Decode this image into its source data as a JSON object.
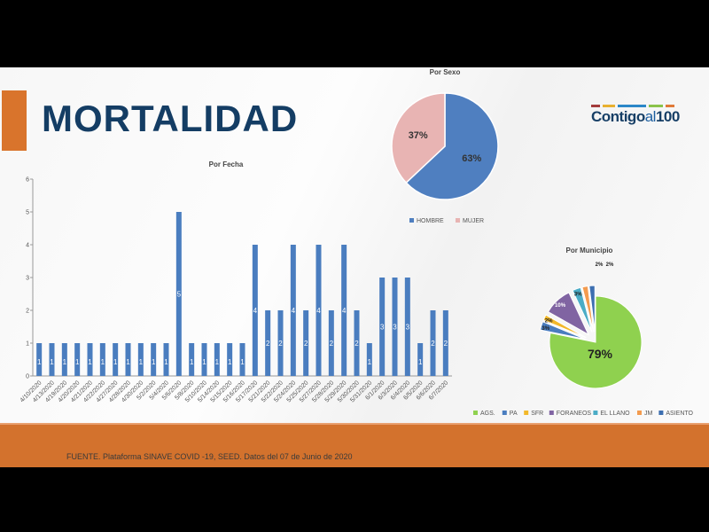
{
  "slide": {
    "title": "MORTALIDAD",
    "logo": {
      "main": "Contigo",
      "mid": "al",
      "num": "100"
    },
    "source": "FUENTE. Plataforma SINAVE COVID -19, SEED. Datos del 07 de Junio de 2020",
    "accent_color": "#d3722d",
    "title_color": "#143d64"
  },
  "chart_data": [
    {
      "type": "bar",
      "title": "Por Fecha",
      "categories": [
        "4/10/2020",
        "4/13/2020",
        "4/19/2020",
        "4/20/2020",
        "4/21/2020",
        "4/22/2020",
        "4/27/2020",
        "4/28/2020",
        "4/30/2020",
        "5/2/2020",
        "5/4/2020",
        "5/6/2020",
        "5/8/2020",
        "5/10/2020",
        "5/14/2020",
        "5/15/2020",
        "5/16/2020",
        "5/17/2020",
        "5/21/2020",
        "5/22/2020",
        "5/24/2020",
        "5/25/2020",
        "5/27/2020",
        "5/28/2020",
        "5/29/2020",
        "5/30/2020",
        "5/31/2020",
        "6/1/2020",
        "6/3/2020",
        "6/4/2020",
        "6/5/2020",
        "6/6/2020",
        "6/7/2020"
      ],
      "values": [
        1,
        1,
        1,
        1,
        1,
        1,
        1,
        1,
        1,
        1,
        1,
        5,
        1,
        1,
        1,
        1,
        1,
        4,
        2,
        2,
        4,
        2,
        4,
        2,
        4,
        2,
        1,
        3,
        3,
        3,
        1,
        2,
        2
      ],
      "ylim": [
        0,
        6
      ],
      "yticks": [
        0,
        1,
        2,
        3,
        4,
        5,
        6
      ],
      "color": "#4a7dbf",
      "xlabel": "",
      "ylabel": ""
    },
    {
      "type": "pie",
      "title": "Por Sexo",
      "labels": [
        "HOMBRE",
        "MUJER"
      ],
      "values": [
        63,
        37
      ],
      "colors": [
        "#4f7fc0",
        "#e8b4b3"
      ],
      "legend": "bottom"
    },
    {
      "type": "pie",
      "title": "Por Municipio",
      "labels": [
        "AGS.",
        "PA",
        "SFR",
        "FORANEOS",
        "EL LLANO",
        "JM",
        "ASIENTO"
      ],
      "values": [
        79,
        3,
        2,
        10,
        3,
        2,
        2
      ],
      "colors": [
        "#8fd14f",
        "#4a7dbf",
        "#f2b82a",
        "#8064a2",
        "#4bacc6",
        "#f39b4f",
        "#3d6fb0"
      ],
      "legend": "bottom"
    }
  ]
}
